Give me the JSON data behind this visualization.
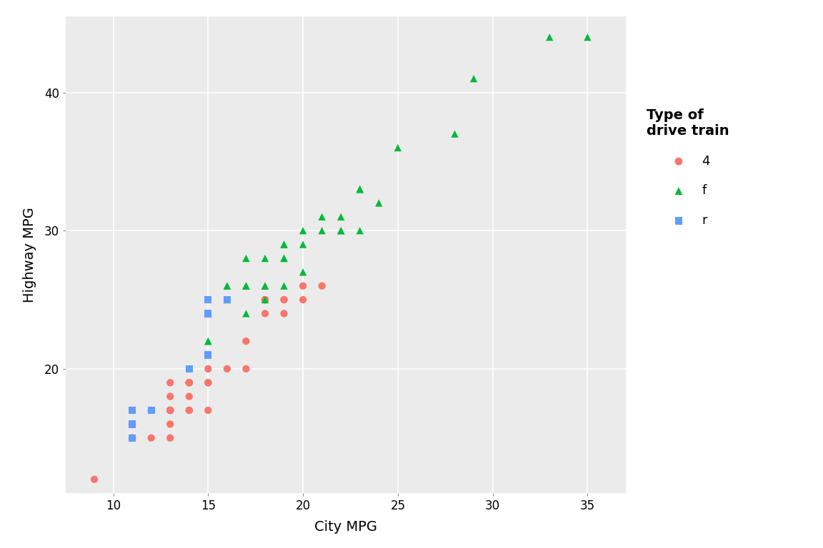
{
  "title": "",
  "xlabel": "City MPG",
  "ylabel": "Highway MPG",
  "legend_title": "Type of\ndrive train",
  "background_color": "#EBEBEB",
  "grid_color": "#FFFFFF",
  "drives": {
    "4": {
      "color": "#F8766D",
      "marker": "o",
      "city": [
        9,
        11,
        11,
        11,
        11,
        11,
        11,
        12,
        12,
        13,
        13,
        13,
        13,
        13,
        13,
        13,
        13,
        13,
        13,
        14,
        14,
        14,
        14,
        14,
        14,
        14,
        14,
        15,
        15,
        15,
        15,
        15,
        16,
        17,
        17,
        18,
        18,
        18,
        18,
        18,
        19,
        19,
        19,
        20,
        20,
        21
      ],
      "hwy": [
        12,
        15,
        15,
        15,
        17,
        16,
        16,
        15,
        17,
        15,
        16,
        17,
        18,
        17,
        19,
        17,
        17,
        17,
        17,
        17,
        19,
        19,
        18,
        19,
        19,
        17,
        19,
        17,
        19,
        20,
        19,
        19,
        20,
        22,
        20,
        25,
        25,
        25,
        24,
        25,
        24,
        25,
        25,
        25,
        26,
        26
      ],
      "label": "4"
    },
    "f": {
      "color": "#00BA38",
      "marker": "^",
      "city": [
        15,
        15,
        15,
        15,
        16,
        16,
        16,
        17,
        17,
        17,
        17,
        17,
        18,
        18,
        18,
        18,
        19,
        19,
        19,
        19,
        19,
        20,
        20,
        20,
        21,
        21,
        22,
        22,
        22,
        23,
        23,
        23,
        23,
        24,
        25,
        28,
        29,
        33,
        35
      ],
      "hwy": [
        22,
        24,
        24,
        22,
        26,
        26,
        25,
        26,
        24,
        26,
        28,
        26,
        26,
        26,
        25,
        28,
        28,
        26,
        29,
        28,
        29,
        29,
        27,
        30,
        31,
        30,
        31,
        30,
        30,
        30,
        33,
        33,
        33,
        32,
        36,
        37,
        41,
        44,
        44
      ],
      "label": "f"
    },
    "r": {
      "color": "#619CFF",
      "marker": "s",
      "city": [
        11,
        11,
        11,
        11,
        11,
        12,
        14,
        14,
        15,
        15,
        15,
        15,
        16
      ],
      "hwy": [
        16,
        17,
        17,
        16,
        15,
        17,
        20,
        20,
        25,
        25,
        24,
        21,
        25
      ],
      "label": "r"
    }
  },
  "xlim": [
    7.5,
    37
  ],
  "ylim": [
    11,
    45.5
  ],
  "xticks": [
    10,
    15,
    20,
    25,
    30,
    35
  ],
  "yticks": [
    20,
    30,
    40
  ],
  "marker_size": 55,
  "legend_title_fontsize": 14,
  "legend_fontsize": 13,
  "axis_label_fontsize": 14,
  "tick_label_fontsize": 12
}
